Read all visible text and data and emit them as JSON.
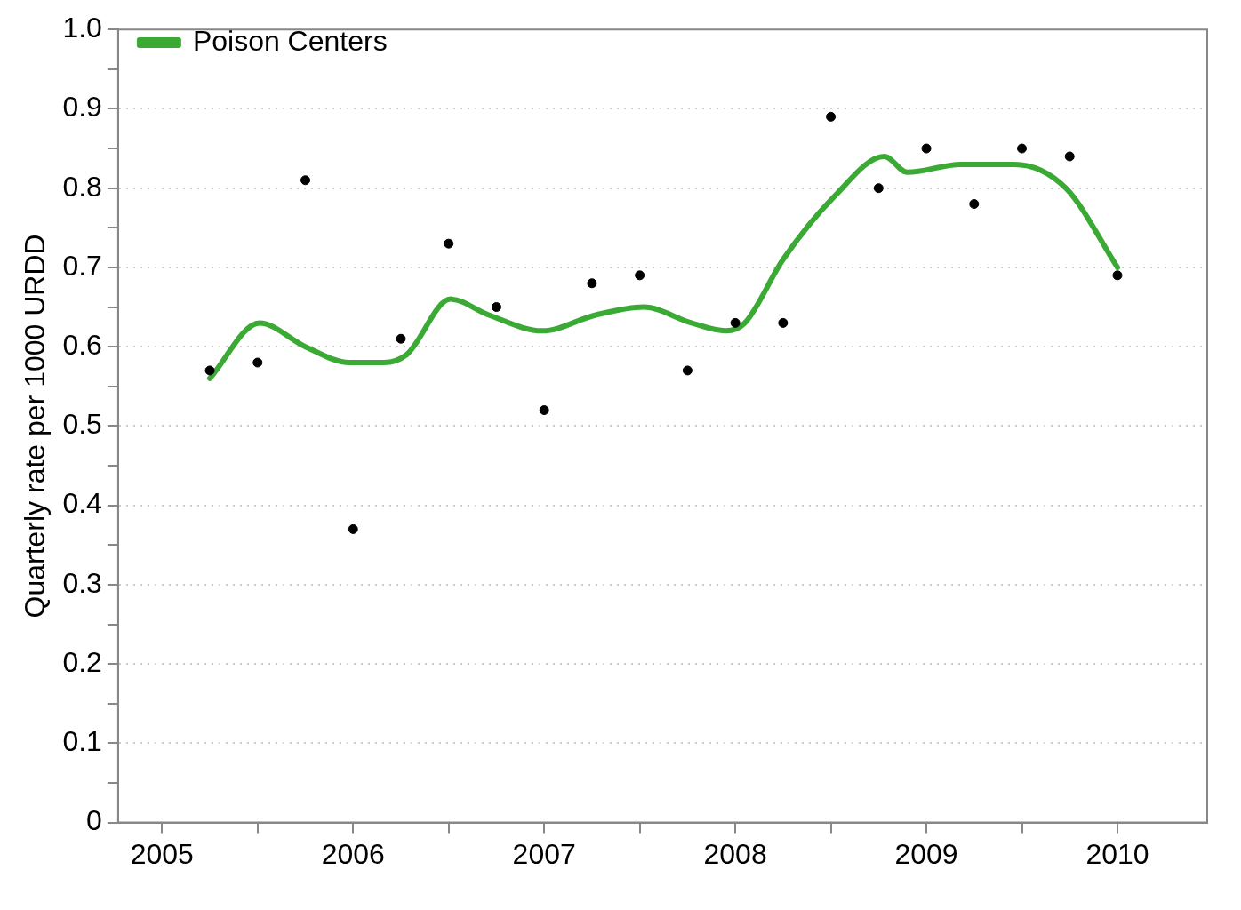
{
  "chart_data": {
    "type": "scatter",
    "ylabel": "Quarterly rate per 1000 URDD",
    "xlim": [
      2004.77,
      2010.47
    ],
    "xticks": [
      2005,
      {
        "value": 2005.5,
        "label": null
      },
      2006,
      {
        "value": 2006.5,
        "label": null
      },
      2007,
      {
        "value": 2007.5,
        "label": null
      },
      2008,
      {
        "value": 2008.5,
        "label": null
      },
      2009,
      {
        "value": 2009.5,
        "label": null
      },
      2010
    ],
    "ylim": [
      0,
      1.0
    ],
    "yticks": [
      0,
      {
        "value": 0.05,
        "label": null
      },
      0.1,
      {
        "value": 0.15,
        "label": null
      },
      0.2,
      {
        "value": 0.25,
        "label": null
      },
      0.3,
      {
        "value": 0.35,
        "label": null
      },
      0.4,
      {
        "value": 0.45,
        "label": null
      },
      0.5,
      {
        "value": 0.55,
        "label": null
      },
      0.6,
      {
        "value": 0.65,
        "label": null
      },
      0.7,
      {
        "value": 0.75,
        "label": null
      },
      0.8,
      {
        "value": 0.85,
        "label": null
      },
      0.9,
      {
        "value": 0.95,
        "label": null
      },
      {
        "value": 1.0,
        "label": "1.0"
      }
    ],
    "grid": "y",
    "legend": "top left",
    "series": [
      {
        "type": "scatter",
        "color": "#000000",
        "marker": "circle",
        "x": [
          2005.25,
          2005.5,
          2005.75,
          2006.0,
          2006.25,
          2006.5,
          2006.75,
          2007.0,
          2007.25,
          2007.5,
          2007.75,
          2008.0,
          2008.25,
          2008.5,
          2008.75,
          2009.0,
          2009.25,
          2009.5,
          2009.75,
          2010.0
        ],
        "values": [
          0.57,
          0.58,
          0.81,
          0.37,
          0.61,
          0.73,
          0.65,
          0.52,
          0.68,
          0.69,
          0.57,
          0.63,
          0.63,
          0.89,
          0.8,
          0.85,
          0.78,
          0.85,
          0.84,
          0.69
        ]
      },
      {
        "type": "line",
        "name": "Poison Centers",
        "color": "#3aaa35",
        "marker": "none",
        "line_style": "solid",
        "x": [
          2005.25,
          2005.51,
          2005.75,
          2005.98,
          2006.16,
          2006.28,
          2006.51,
          2006.71,
          2006.99,
          2007.27,
          2007.52,
          2007.77,
          2007.95,
          2008.05,
          2008.25,
          2008.52,
          2008.78,
          2008.9,
          2009.18,
          2009.46,
          2009.73,
          2010.0
        ],
        "values": [
          0.56,
          0.63,
          0.6,
          0.58,
          0.58,
          0.59,
          0.66,
          0.64,
          0.62,
          0.64,
          0.65,
          0.63,
          0.62,
          0.63,
          0.71,
          0.79,
          0.84,
          0.82,
          0.83,
          0.83,
          0.8,
          0.7
        ]
      }
    ]
  }
}
